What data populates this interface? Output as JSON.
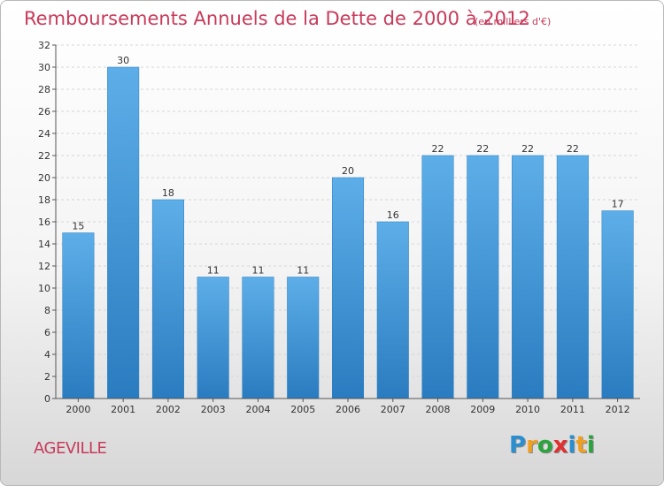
{
  "header": {
    "title": "Remboursements Annuels de la Dette de 2000 à 2012",
    "unit": "(en milliers d'€)"
  },
  "footer": {
    "commune": "AGEVILLE",
    "logo_letters": [
      {
        "ch": "P",
        "color": "#2a8fd0"
      },
      {
        "ch": "r",
        "color": "#f0a020"
      },
      {
        "ch": "o",
        "color": "#2aa43c"
      },
      {
        "ch": "x",
        "color": "#e03030"
      },
      {
        "ch": "i",
        "color": "#2a8fd0"
      },
      {
        "ch": "t",
        "color": "#f0a020"
      },
      {
        "ch": "i",
        "color": "#2aa43c"
      }
    ]
  },
  "chart_data": {
    "type": "bar",
    "title": "Remboursements Annuels de la Dette de 2000 à 2012",
    "xlabel": "",
    "ylabel": "",
    "categories": [
      "2000",
      "2001",
      "2002",
      "2003",
      "2004",
      "2005",
      "2006",
      "2007",
      "2008",
      "2009",
      "2010",
      "2011",
      "2012"
    ],
    "values": [
      15,
      30,
      18,
      11,
      11,
      11,
      20,
      16,
      22,
      22,
      22,
      22,
      17
    ],
    "ylim": [
      0,
      32
    ],
    "yticks": [
      0,
      2,
      4,
      6,
      8,
      10,
      12,
      14,
      16,
      18,
      20,
      22,
      24,
      26,
      28,
      30,
      32
    ],
    "grid": true,
    "legend": "none",
    "bar_color": "#3d95d6"
  }
}
